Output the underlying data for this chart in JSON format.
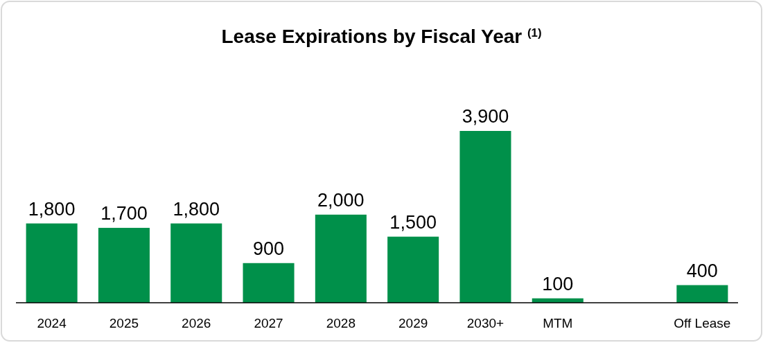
{
  "chart_data": {
    "type": "bar",
    "title": "Lease Expirations by Fiscal Year $^{(1)}$",
    "categories": [
      "2024",
      "2025",
      "2026",
      "2027",
      "2028",
      "2029",
      "2030+",
      "MTM",
      null,
      "Off Lease"
    ],
    "values": [
      1800,
      1700,
      1800,
      900,
      2000,
      1500,
      3900,
      100,
      null,
      400
    ],
    "value_labels": [
      "1,800",
      "1,700",
      "1,800",
      "900",
      "2,000",
      "1,500",
      "3,900",
      "100",
      null,
      "400"
    ],
    "color": "#00904a"
  }
}
